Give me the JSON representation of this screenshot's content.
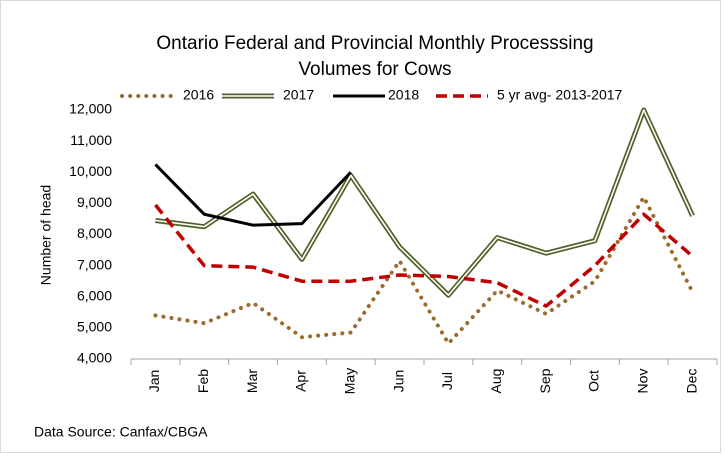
{
  "chart_data": {
    "type": "line",
    "title": [
      "Ontario Federal and Provincial Monthly Processsing",
      "Volumes for Cows"
    ],
    "ylabel": "Number of head",
    "source": "Data Source: Canfax/CBGA",
    "categories": [
      "Jan",
      "Feb",
      "Mar",
      "Apr",
      "May",
      "Jun",
      "Jul",
      "Aug",
      "Sep",
      "Oct",
      "Nov",
      "Dec"
    ],
    "series": [
      {
        "name": "2016",
        "color": "#9c6b30",
        "line_style": "dotted",
        "values": [
          5400,
          5150,
          5800,
          4700,
          4850,
          7150,
          4500,
          6200,
          5450,
          6500,
          9200,
          6150
        ]
      },
      {
        "name": "2017",
        "color": "#4f6228",
        "line_style": "double",
        "values": [
          8450,
          8250,
          9300,
          7200,
          9900,
          7600,
          6050,
          7900,
          7400,
          7800,
          12000,
          8600
        ]
      },
      {
        "name": "2018",
        "color": "#000000",
        "line_style": "solid",
        "values": [
          10250,
          8650,
          8300,
          8350,
          10000,
          null,
          null,
          null,
          null,
          null,
          null,
          null
        ]
      },
      {
        "name": "5 yr avg- 2013-2017",
        "color": "#c00000",
        "line_style": "dashed",
        "values": [
          8950,
          7000,
          6950,
          6500,
          6500,
          6700,
          6650,
          6450,
          5700,
          7000,
          8650,
          7300
        ]
      }
    ],
    "ylim": [
      4000,
      12000
    ],
    "yticks": [
      {
        "value": 4000,
        "label": "4,000"
      },
      {
        "value": 5000,
        "label": "5,000"
      },
      {
        "value": 6000,
        "label": "6,000"
      },
      {
        "value": 7000,
        "label": "7,000"
      },
      {
        "value": 8000,
        "label": "8,000"
      },
      {
        "value": 9000,
        "label": "9,000"
      },
      {
        "value": 10000,
        "label": "10,000"
      },
      {
        "value": 11000,
        "label": "11,000"
      },
      {
        "value": 12000,
        "label": "12,000"
      }
    ],
    "grid": false,
    "legend": "top"
  }
}
